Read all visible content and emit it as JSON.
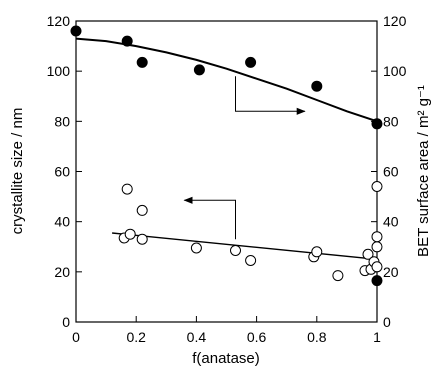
{
  "chart_data": {
    "type": "scatter",
    "xlabel": "f(anatase)",
    "ylabel": "crystallite size / nm",
    "ylabel_right": "BET surface area / m² g⁻¹",
    "xlim": [
      0,
      1
    ],
    "ylim": [
      0,
      120
    ],
    "ylim_right": [
      0,
      120
    ],
    "x_ticks": [
      "0",
      "0.2",
      "0.4",
      "0.6",
      "0.8",
      "1"
    ],
    "y_ticks": [
      "0",
      "20",
      "40",
      "60",
      "80",
      "100",
      "120"
    ],
    "y_ticks_right": [
      "0",
      "20",
      "40",
      "60",
      "80",
      "100",
      "120"
    ],
    "grid": false,
    "series": [
      {
        "axis": "right",
        "marker": "filled-circle",
        "points": [
          [
            0,
            116
          ],
          [
            0.17,
            112
          ],
          [
            0.22,
            103.5
          ],
          [
            0.41,
            100.5
          ],
          [
            0.58,
            103.5
          ],
          [
            0.8,
            94
          ],
          [
            1,
            79
          ],
          [
            1,
            16.5
          ]
        ],
        "fit": [
          [
            0,
            113
          ],
          [
            0.1,
            112
          ],
          [
            0.2,
            110
          ],
          [
            0.3,
            107.5
          ],
          [
            0.4,
            104.5
          ],
          [
            0.5,
            101
          ],
          [
            0.6,
            97
          ],
          [
            0.7,
            93
          ],
          [
            0.8,
            88.5
          ],
          [
            0.9,
            84
          ],
          [
            1,
            80
          ]
        ]
      },
      {
        "axis": "left",
        "marker": "open-circle",
        "points": [
          [
            0.16,
            33.5
          ],
          [
            0.17,
            53
          ],
          [
            0.18,
            35
          ],
          [
            0.22,
            44.5
          ],
          [
            0.22,
            33
          ],
          [
            0.4,
            29.5
          ],
          [
            0.53,
            28.5
          ],
          [
            0.58,
            24.5
          ],
          [
            0.79,
            26
          ],
          [
            0.8,
            28
          ],
          [
            0.87,
            18.5
          ],
          [
            0.96,
            20.5
          ],
          [
            0.97,
            27
          ],
          [
            0.98,
            21
          ],
          [
            0.99,
            24
          ],
          [
            1,
            30
          ],
          [
            1,
            34
          ],
          [
            1,
            54
          ],
          [
            1,
            22
          ]
        ],
        "fit": [
          [
            0.12,
            35.5
          ],
          [
            1,
            25
          ]
        ]
      }
    ],
    "annotations": [
      {
        "type": "arrow",
        "direction": "right",
        "target_axis": "right",
        "path": [
          [
            0.53,
            98
          ],
          [
            0.53,
            84
          ],
          [
            0.76,
            84
          ]
        ]
      },
      {
        "type": "arrow",
        "direction": "left",
        "target_axis": "left",
        "path": [
          [
            0.53,
            33
          ],
          [
            0.53,
            48.5
          ],
          [
            0.36,
            48.5
          ]
        ]
      }
    ]
  }
}
